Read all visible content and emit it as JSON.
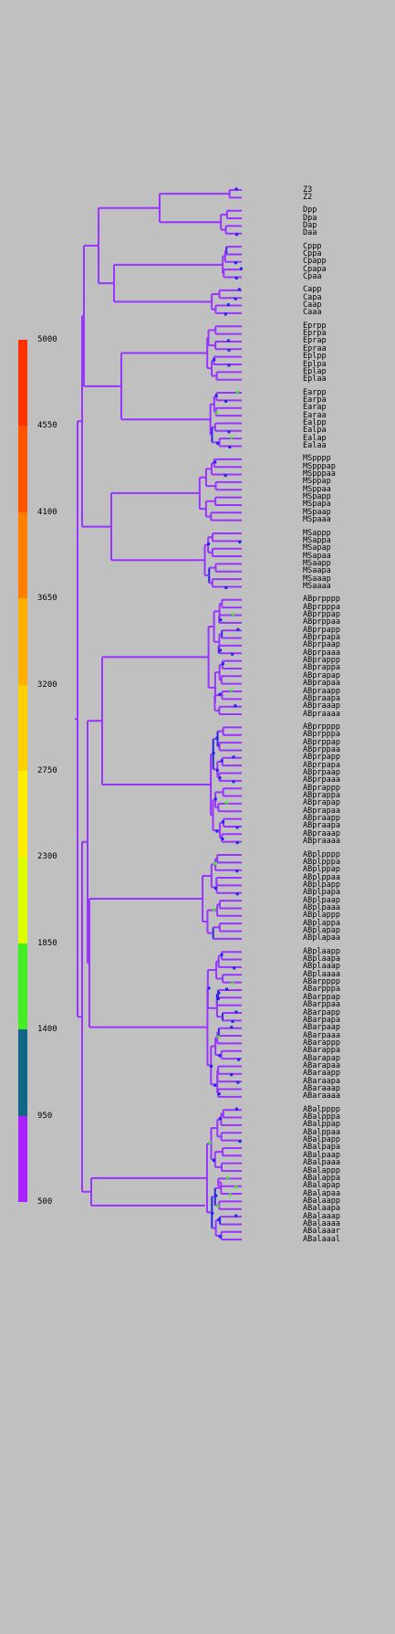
{
  "legend": {
    "ticks": [
      "5000",
      "4550",
      "4100",
      "3650",
      "3200",
      "2750",
      "2300",
      "1850",
      "1400",
      "950",
      "500"
    ],
    "colors": [
      "#ff3300",
      "#ff5500",
      "#ff8000",
      "#ffb000",
      "#ffd000",
      "#ffee00",
      "#ddff00",
      "#44ee22",
      "#116688",
      "#aa22ff"
    ]
  },
  "tree": {
    "branch_color": "#9933ff",
    "event_colors": [
      "#2222ee",
      "#44ee22",
      "#ffdd00"
    ],
    "groups": [
      [
        "Z3",
        "Z2"
      ],
      [
        "Dpp",
        "Dpa",
        "Dap",
        "Daa"
      ],
      [
        "Cppp",
        "Cppa",
        "Cpapp",
        "Cpapa",
        "Cpaa"
      ],
      [
        "Capp",
        "Capa",
        "Caap",
        "Caaa"
      ],
      [
        "Eprpp",
        "Eprpa",
        "Eprap",
        "Epraa",
        "Eplpp",
        "Eplpa",
        "Eplap",
        "Eplaa"
      ],
      [
        "Earpp",
        "Earpa",
        "Earap",
        "Earaa",
        "Ealpp",
        "Ealpa",
        "Ealap",
        "Ealaa"
      ],
      [
        "MSpppp",
        "MSpppap",
        "MSpppaa",
        "MSppap",
        "MSppaa",
        "MSpapp",
        "MSpapa",
        "MSpaap",
        "MSpaaa"
      ],
      [
        "MSappp",
        "MSappa",
        "MSapap",
        "MSapaa",
        "MSaapp",
        "MSaapa",
        "MSaaap",
        "MSaaaa"
      ],
      [
        "ABprpppp",
        "ABprpppa",
        "ABprppap",
        "ABprppaa",
        "ABprpapp",
        "ABprpapa",
        "ABprpaap",
        "ABprpaaa",
        "ABprappp",
        "ABprappa",
        "ABprapap",
        "ABprapaa",
        "ABpraapp",
        "ABpraapa",
        "ABpraaap",
        "ABpraaaa"
      ],
      [
        "ABprpppp",
        "ABprpppa",
        "ABprppap",
        "ABprppaa",
        "ABprpapp",
        "ABprpapa",
        "ABprpaap",
        "ABprpaaa",
        "ABprappp",
        "ABprappa",
        "ABprapap",
        "ABprapaa",
        "ABpraapp",
        "ABpraapa",
        "ABpraaap",
        "ABpraaaa"
      ],
      [
        "ABplpppp",
        "ABplpppa",
        "ABplppap",
        "ABplppaa",
        "ABplpapp",
        "ABplpapa",
        "ABplpaap",
        "ABplpaaa",
        "ABplappp",
        "ABplappa",
        "ABplapap",
        "ABplapaa"
      ],
      [
        "ABplaapp",
        "ABplaapa",
        "ABplaaap",
        "ABplaaaa",
        "ABarpppp",
        "ABarpppa",
        "ABarppap",
        "ABarppaa",
        "ABarpapp",
        "ABarpapa",
        "ABarpaap",
        "ABarpaaa",
        "ABarappp",
        "ABarappa",
        "ABarapap",
        "ABarapaa",
        "ABaraapp",
        "ABaraapa",
        "ABaraaap",
        "ABaraaaa"
      ],
      [
        "ABalpppp",
        "ABalpppa",
        "ABalppap",
        "ABalppaa",
        "ABalpapp",
        "ABalpapa",
        "ABalpaap",
        "ABalpaaa",
        "ABalappp",
        "ABalappa",
        "ABalapap",
        "ABalapaa",
        "ABalaapp",
        "ABalaapa",
        "ABalaaap",
        "ABalaaaa",
        "ABalaaar",
        "ABalaaal"
      ]
    ]
  }
}
